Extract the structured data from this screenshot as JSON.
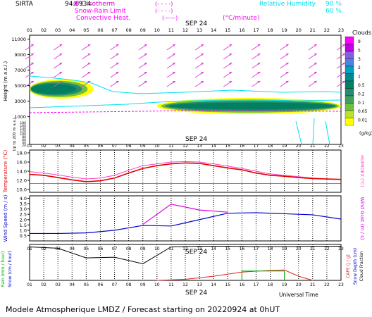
{
  "header": {
    "station": "SIRTA",
    "station_num": "94.6934",
    "legend_items": [
      {
        "label": "0°C isotherm",
        "sample": "(- - - -)"
      },
      {
        "label": "Snow-Rain Limit",
        "sample": "(- - - -)"
      },
      {
        "label": "Convective Heat.",
        "sample": "(——)",
        "unit": "(°C/minute)"
      }
    ],
    "rh_label": "Relative Humidity",
    "rh_values": [
      "90 %",
      "60 %"
    ]
  },
  "footer": {
    "universal_time": "Universal Time",
    "date_label": "SEP 24",
    "caption": "Modele Atmospherique LMDZ / Forecast starting on 20220924 at 0hUT"
  },
  "hours": [
    "01",
    "02",
    "03",
    "04",
    "05",
    "06",
    "07",
    "08",
    "09",
    "10",
    "11",
    "12",
    "13",
    "14",
    "15",
    "16",
    "17",
    "18",
    "19",
    "20",
    "21",
    "22",
    "23"
  ],
  "colors": {
    "cloud_scale": [
      "#ffff00",
      "#c0e030",
      "#70c040",
      "#40a060",
      "#2a8a70",
      "#008060",
      "#008a8a",
      "#00a0c0",
      "#5080e0",
      "#8060e0",
      "#c000e0",
      "#ff00ff"
    ],
    "temp_red": "#e00000",
    "humidex_pink": "#ff40c0",
    "wind_blue": "#0000cc",
    "gust_magenta": "#e000e0",
    "cape_red": "#e02020",
    "cloudfrac_green": "#00b000",
    "convective_heat": "#ff00ff",
    "rh_cyan": "#00e0f0",
    "arrow_magenta": "#e040e0"
  },
  "chart_data": [
    {
      "type": "heatmap",
      "title": "Clouds",
      "ylabel": "Height (m a.s.l.)",
      "ylabel2": "Up to 200 m a.s.l.",
      "yticks_upper": [
        "11000",
        "9000",
        "7000",
        "5000",
        "3000",
        "1000"
      ],
      "yticks_lower": [
        "180",
        "160",
        "140",
        "120",
        "100",
        "80",
        "60",
        "40",
        "20"
      ],
      "colorbar_ticks": [
        "9",
        "5",
        "3",
        "2",
        "1",
        "0.5",
        "0.2",
        "0.1",
        "0.05",
        "0.01"
      ],
      "colorbar_unit": "(g/kg)",
      "rh_contour_labels": [
        "60",
        "90"
      ],
      "layers": [
        {
          "name": "low-morning",
          "hour_start": 1,
          "hour_end": 5.5,
          "height_base": 3500,
          "height_top": 6000,
          "peak_gkg": 0.2
        },
        {
          "name": "low-day",
          "hour_start": 10,
          "hour_end": 23,
          "height_base": 1500,
          "height_top": 3600,
          "peak_gkg": 0.2
        }
      ]
    },
    {
      "type": "line",
      "date_label": "SEP 24",
      "ylabel": "Temperature (°C)",
      "ylabel2": "HUMIDEX (°C)",
      "yticks": [
        "18.0",
        "16.0",
        "14.0",
        "12.0",
        "10.0"
      ],
      "ylim": [
        10,
        18
      ],
      "x": [
        1,
        2,
        3,
        4,
        5,
        6,
        7,
        8,
        9,
        10,
        11,
        12,
        13,
        14,
        15,
        16,
        17,
        18,
        19,
        20,
        21,
        22,
        23
      ],
      "series": [
        {
          "name": "Temperature",
          "values": [
            13.3,
            13.1,
            12.6,
            12.1,
            11.7,
            11.9,
            12.5,
            13.6,
            14.6,
            15.2,
            15.6,
            15.8,
            15.7,
            15.2,
            14.7,
            14.3,
            13.6,
            13.1,
            12.9,
            12.6,
            12.4,
            12.3,
            12.2
          ]
        },
        {
          "name": "Humidex",
          "values": [
            13.9,
            13.6,
            13.2,
            12.7,
            12.3,
            12.5,
            13.1,
            14.2,
            15.2,
            15.6,
            16.0,
            16.1,
            16.0,
            15.6,
            15.1,
            14.6,
            14.0,
            13.4,
            13.1,
            12.8,
            12.5,
            12.3,
            12.2
          ]
        }
      ]
    },
    {
      "type": "line",
      "ylabel": "Wind Speed (m / s)",
      "ylabel2": "Wind Gust (m / s)",
      "yticks": [
        "4.0",
        "3.5",
        "3.0",
        "2.5",
        "2.0",
        "1.5",
        "1.0",
        "0.5"
      ],
      "ylim": [
        0,
        4
      ],
      "series": [
        {
          "name": "Wind Speed",
          "x": [
            1,
            3,
            5,
            7,
            9,
            11,
            13,
            15,
            17,
            19,
            21,
            23
          ],
          "values": [
            0.7,
            0.7,
            0.75,
            1.0,
            1.45,
            1.4,
            2.0,
            2.6,
            2.65,
            2.55,
            2.45,
            2.05
          ]
        },
        {
          "name": "Wind Gust",
          "x": [
            9,
            11,
            13,
            15
          ],
          "values": [
            1.55,
            3.45,
            2.9,
            2.7
          ]
        }
      ]
    },
    {
      "type": "line",
      "date_label": "SEP 24",
      "ylabel": "Rain (mm / hour)",
      "ylabel2": "Snow (cm / hour)",
      "ylabel_right": "CAPE (J / g)",
      "ylabel_right2": "Snow Depth (cm)",
      "ylabel_right3": "Cloud Fraction",
      "ylim": [
        0,
        1
      ],
      "series": [
        {
          "name": "Cloud Fraction",
          "x": [
            1,
            3,
            5,
            7,
            9,
            11,
            13,
            15,
            17,
            19,
            21,
            23
          ],
          "values": [
            0.97,
            0.93,
            0.65,
            0.67,
            0.48,
            0.97,
            0.99,
            0.99,
            0.98,
            0.98,
            0.99,
            0.99
          ]
        },
        {
          "name": "CAPE",
          "x": [
            10,
            12,
            14,
            16,
            18,
            19,
            20,
            21
          ],
          "values": [
            0.0,
            0.03,
            0.12,
            0.24,
            0.29,
            0.3,
            0.12,
            0.0
          ]
        },
        {
          "name": "Cloud cover step",
          "x": [
            16,
            16,
            17,
            19,
            19
          ],
          "values": [
            0.0,
            0.27,
            0.27,
            0.27,
            0.0
          ]
        }
      ]
    }
  ]
}
